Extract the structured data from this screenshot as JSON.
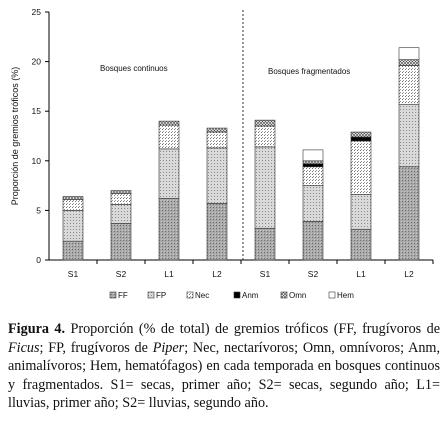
{
  "chart_data": {
    "type": "bar",
    "stacked": true,
    "categories": [
      "S1",
      "S2",
      "L1",
      "L2",
      "S1",
      "S2",
      "L1",
      "L2"
    ],
    "ylabel": "Proporción de gremios tróficos (%)",
    "ylim": [
      0,
      25
    ],
    "yticks": [
      "0",
      "5",
      "10",
      "15",
      "20",
      "25"
    ],
    "grid": false,
    "legend_position": "bottom",
    "section_labels": [
      "Bosques continuos",
      "Bosques fragmentados"
    ],
    "series": [
      {
        "name": "FF",
        "pattern": "dense-stipple",
        "values": [
          1.9,
          3.7,
          6.2,
          5.7,
          3.2,
          3.9,
          3.1,
          9.4
        ]
      },
      {
        "name": "FP",
        "pattern": "light-stipple",
        "values": [
          3.1,
          1.9,
          5.0,
          5.6,
          8.2,
          3.6,
          3.5,
          6.3
        ]
      },
      {
        "name": "Nec",
        "pattern": "dots",
        "values": [
          1.1,
          1.1,
          2.4,
          1.6,
          2.1,
          1.9,
          5.4,
          3.9
        ]
      },
      {
        "name": "Anm",
        "pattern": "black",
        "values": [
          0.0,
          0.0,
          0.0,
          0.0,
          0.0,
          0.3,
          0.4,
          0.0
        ]
      },
      {
        "name": "Omn",
        "pattern": "crosshatch",
        "values": [
          0.3,
          0.3,
          0.4,
          0.4,
          0.6,
          0.3,
          0.5,
          0.6
        ]
      },
      {
        "name": "Hem",
        "pattern": "white",
        "values": [
          0.0,
          0.0,
          0.0,
          0.0,
          0.0,
          1.1,
          0.0,
          1.2
        ]
      }
    ]
  },
  "caption": {
    "label": "Figura 4.",
    "parts": [
      {
        "text": " Proporción (% de total) de gremios tróficos (FF, frugívoros de ",
        "italic": false
      },
      {
        "text": "Ficus",
        "italic": true
      },
      {
        "text": "; FP, frugívoros de ",
        "italic": false
      },
      {
        "text": "Piper",
        "italic": true
      },
      {
        "text": "; Nec, nectarívoros; Omn, omnívoros; Anm, animalívoros; Hem, hematófagos) en cada temporada en bosques continuos y fragmentados. S1= secas, primer año; S2= secas, segundo año; L1= lluvias, primer año; S2= lluvias, segundo año.",
        "italic": false
      }
    ]
  }
}
